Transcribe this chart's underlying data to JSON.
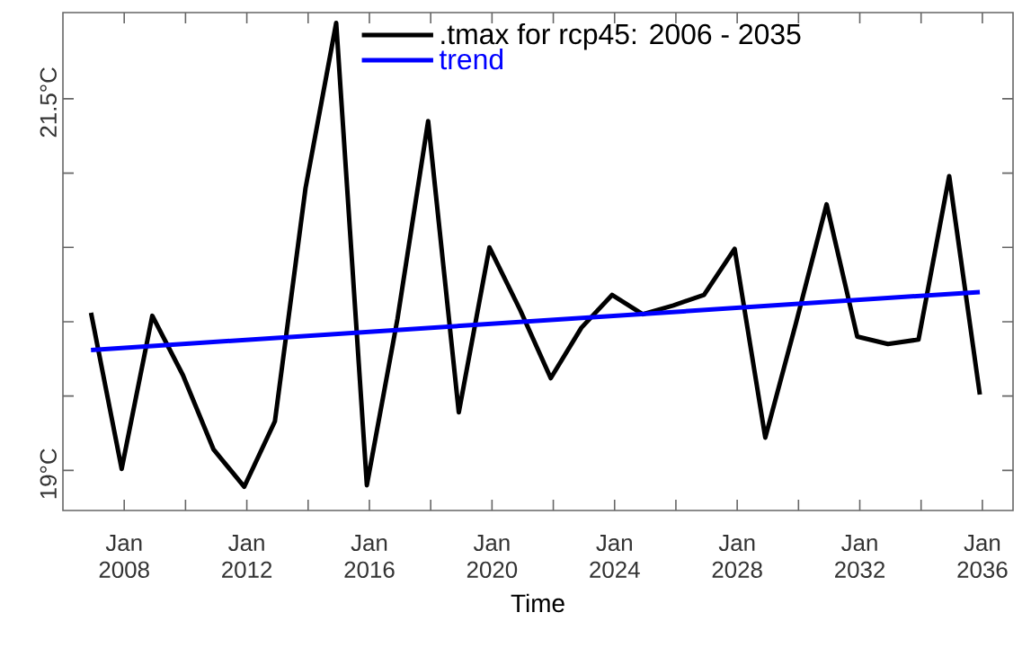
{
  "chart_data": {
    "type": "line",
    "xlabel": "Time",
    "x": [
      "2006-12",
      "2007-12",
      "2008-12",
      "2009-12",
      "2010-12",
      "2011-12",
      "2012-12",
      "2013-12",
      "2014-12",
      "2015-12",
      "2016-12",
      "2017-12",
      "2018-12",
      "2019-12",
      "2020-12",
      "2021-12",
      "2022-12",
      "2023-12",
      "2024-12",
      "2025-12",
      "2026-12",
      "2027-12",
      "2028-12",
      "2029-12",
      "2030-12",
      "2031-12",
      "2032-12",
      "2033-12",
      "2034-12",
      "2035-12"
    ],
    "series": [
      {
        "name": ".tmax for rcp45: 2006 - 2035",
        "color": "#000000",
        "values": [
          20.06,
          19.01,
          20.04,
          19.64,
          19.14,
          18.89,
          19.33,
          20.9,
          22.01,
          18.9,
          20.02,
          21.35,
          19.39,
          20.5,
          20.08,
          19.62,
          19.96,
          20.18,
          20.05,
          20.11,
          20.18,
          20.49,
          19.22,
          19.99,
          20.79,
          19.9,
          19.85,
          19.88,
          20.98,
          19.51
        ]
      },
      {
        "name": "trend",
        "color": "#0000ff",
        "x": [
          "2006-12",
          "2035-12"
        ],
        "values": [
          19.81,
          20.2
        ]
      }
    ],
    "xlim": [
      "2006-01",
      "2037-01"
    ],
    "xticks": [
      {
        "value": "2008-01",
        "label": "Jan 2008"
      },
      {
        "value": "2010-01",
        "label": null
      },
      {
        "value": "2012-01",
        "label": "Jan 2012"
      },
      {
        "value": "2014-01",
        "label": null
      },
      {
        "value": "2016-01",
        "label": "Jan 2016"
      },
      {
        "value": "2018-01",
        "label": null
      },
      {
        "value": "2020-01",
        "label": "Jan 2020"
      },
      {
        "value": "2022-01",
        "label": null
      },
      {
        "value": "2024-01",
        "label": "Jan 2024"
      },
      {
        "value": "2026-01",
        "label": null
      },
      {
        "value": "2028-01",
        "label": "Jan 2028"
      },
      {
        "value": "2030-01",
        "label": null
      },
      {
        "value": "2032-01",
        "label": "Jan 2032"
      },
      {
        "value": "2034-01",
        "label": null
      },
      {
        "value": "2036-01",
        "label": "Jan 2036"
      }
    ],
    "ylim": [
      18.73,
      22.08
    ],
    "yticks": [
      {
        "value": 19,
        "label": "19°C"
      },
      {
        "value": 19.5,
        "label": null
      },
      {
        "value": 20,
        "label": null
      },
      {
        "value": 20.5,
        "label": null
      },
      {
        "value": 21,
        "label": null
      },
      {
        "value": 21.5,
        "label": "21.5°C"
      }
    ],
    "legend": "top left",
    "marker": "none",
    "line_style": "solid"
  }
}
